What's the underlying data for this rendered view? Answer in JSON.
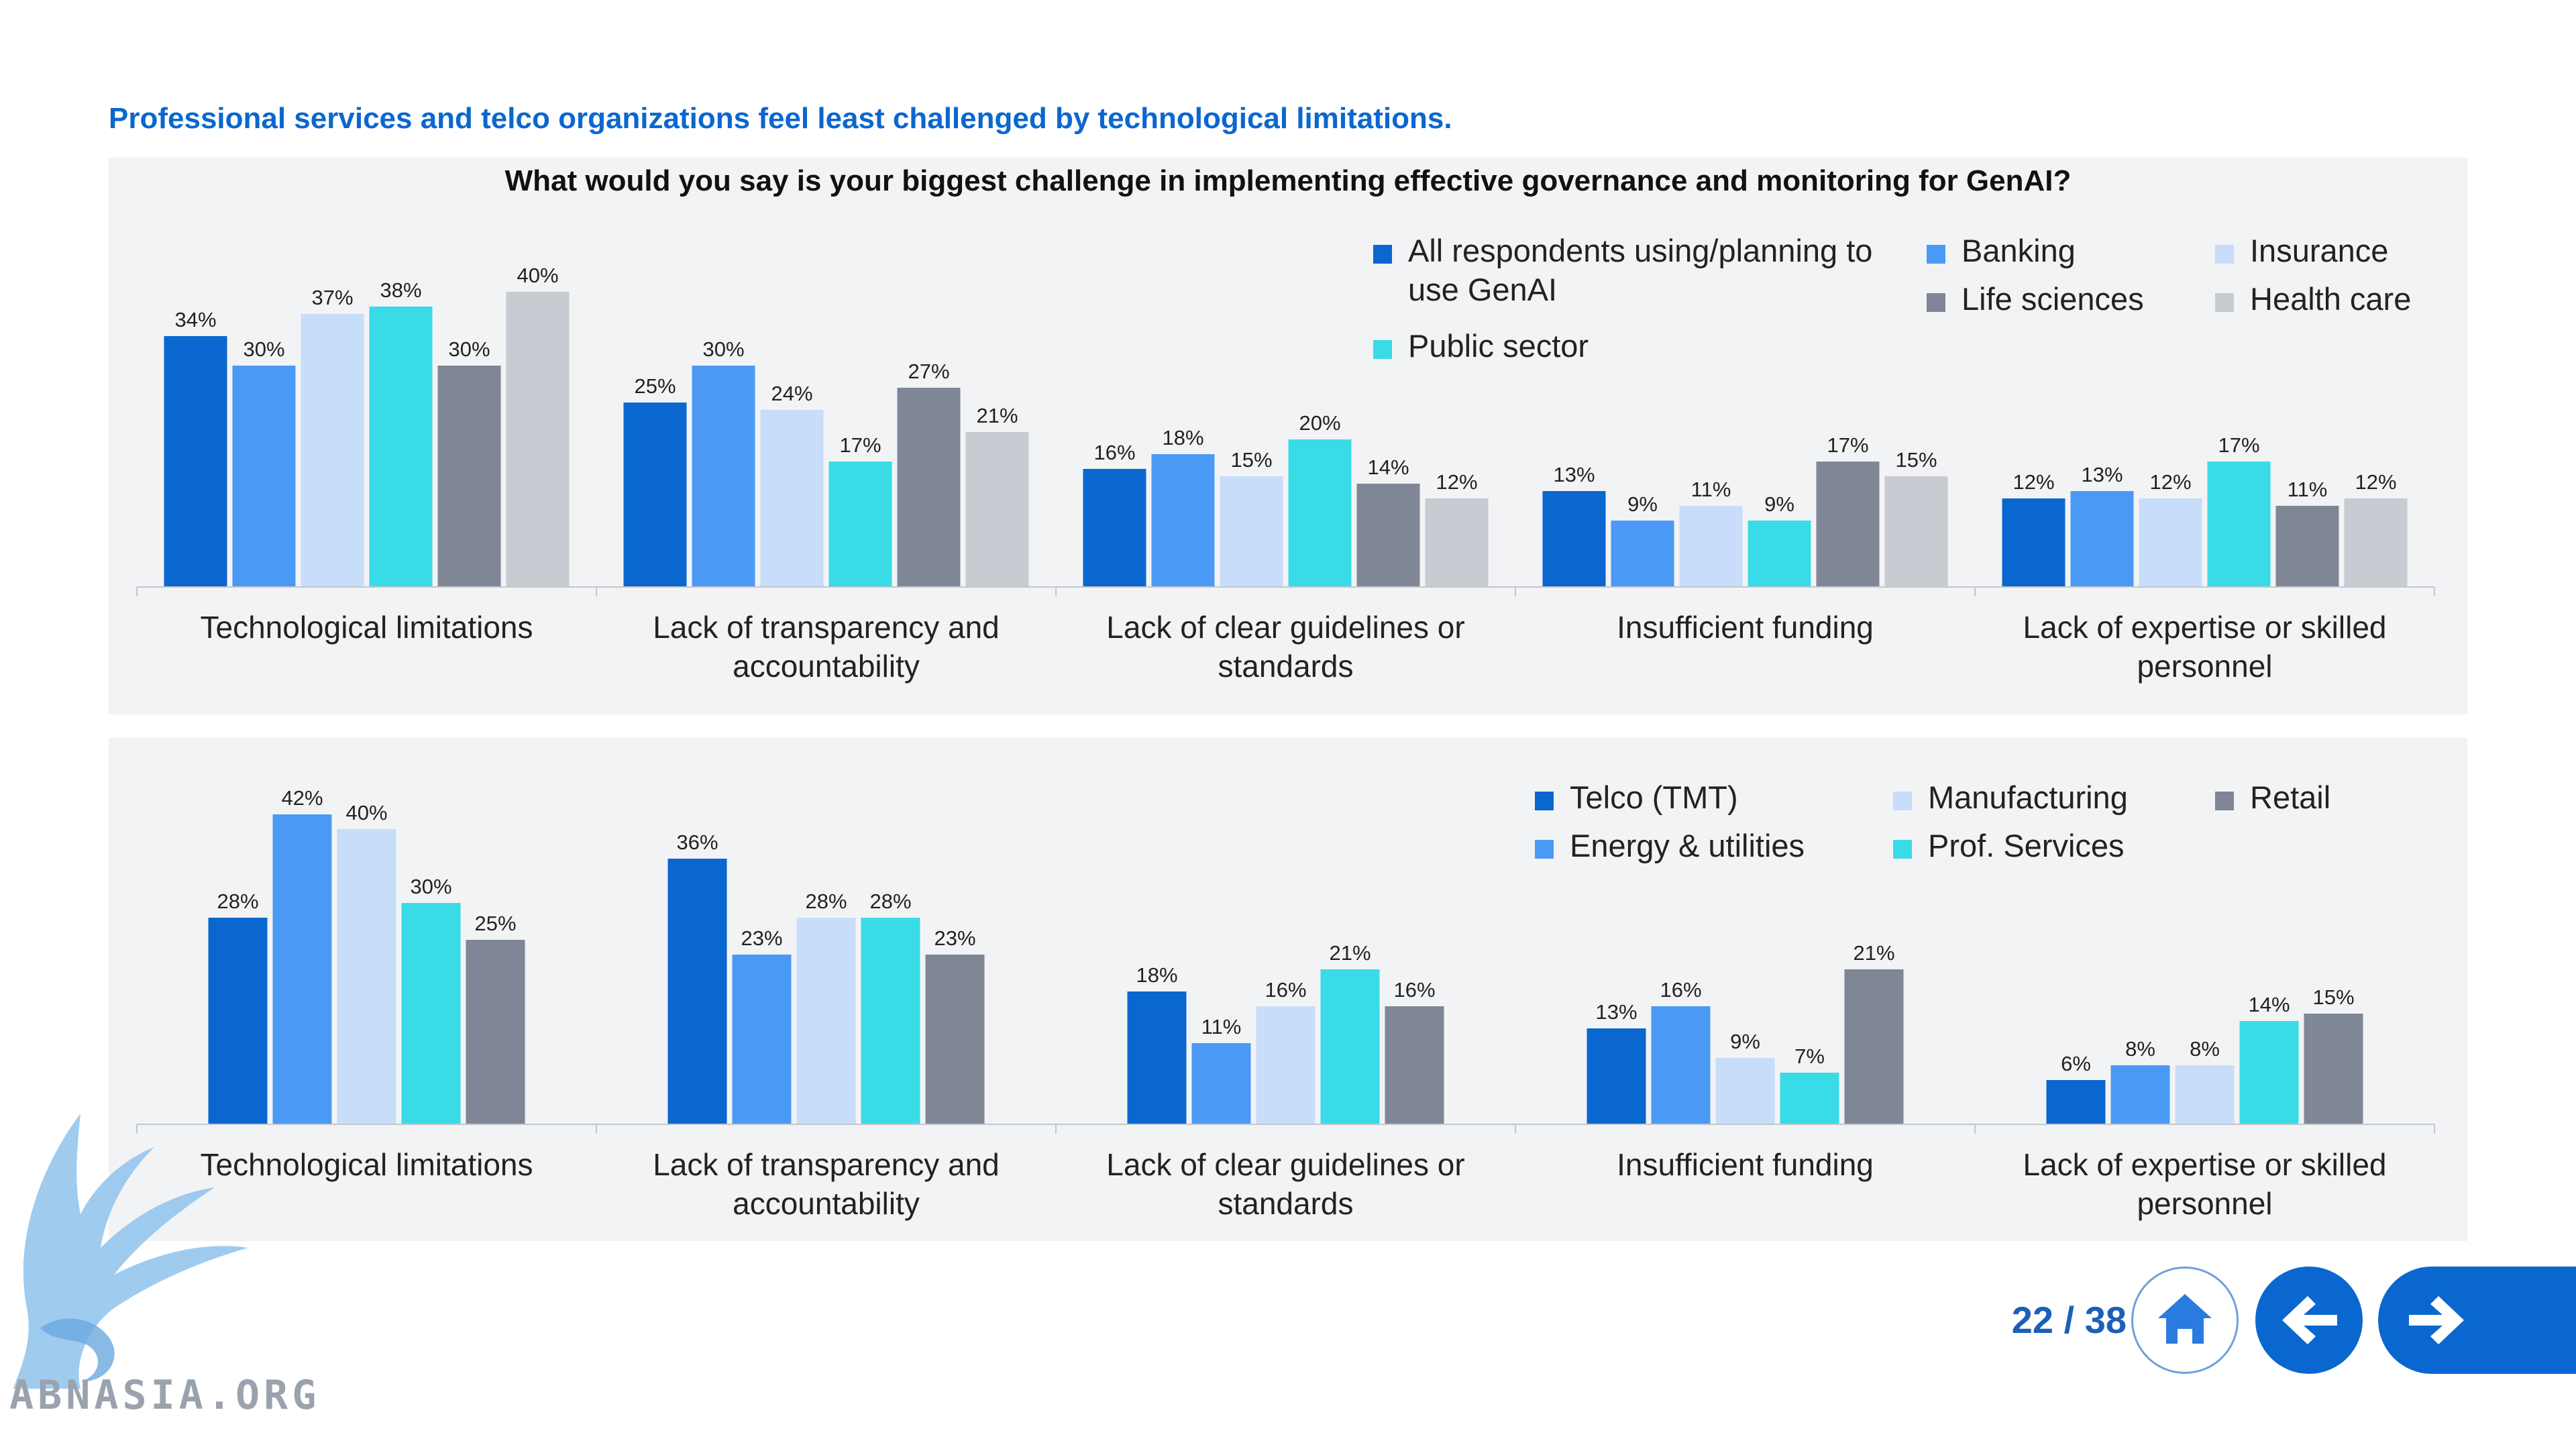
{
  "headline": "Professional services and telco organizations feel least challenged by technological limitations.",
  "question": "What would you say is your biggest challenge in implementing effective governance and monitoring for GenAI?",
  "page_counter": "22 / 38",
  "watermark_text": "ABNASIA.ORG",
  "colors": {
    "dark_blue": "#0a67d0",
    "mid_blue": "#4a9af5",
    "light_blue": "#c7ddfa",
    "cyan": "#39dbe6",
    "slate": "#7f8696",
    "light_gray": "#c8cbd2",
    "panel_bg": "#f2f3f5"
  },
  "icons": {
    "home": "home-icon",
    "back": "arrow-left-icon",
    "next": "arrow-right-icon"
  },
  "chart_data": [
    {
      "type": "bar",
      "categories": [
        "Technological limitations",
        "Lack of transparency and accountability",
        "Lack of clear guidelines or standards",
        "Insufficient funding",
        "Lack of expertise or skilled personnel"
      ],
      "series": [
        {
          "name": "All respondents using/planning to use GenAI",
          "color": "#0a67d0",
          "values": [
            34,
            25,
            16,
            13,
            12
          ]
        },
        {
          "name": "Banking",
          "color": "#4a9af5",
          "values": [
            30,
            30,
            18,
            9,
            13
          ]
        },
        {
          "name": "Insurance",
          "color": "#c7ddfa",
          "values": [
            37,
            24,
            15,
            11,
            12
          ]
        },
        {
          "name": "Public sector",
          "color": "#39dbe6",
          "values": [
            38,
            17,
            20,
            9,
            17
          ]
        },
        {
          "name": "Life sciences",
          "color": "#7f8696",
          "values": [
            30,
            27,
            14,
            17,
            11
          ]
        },
        {
          "name": "Health care",
          "color": "#c8cbd2",
          "values": [
            40,
            21,
            12,
            15,
            12
          ]
        }
      ],
      "unit": "%",
      "ylim": [
        0,
        45
      ],
      "legend_position": "top-right",
      "grid": false
    },
    {
      "type": "bar",
      "categories": [
        "Technological limitations",
        "Lack of transparency and accountability",
        "Lack of clear guidelines or standards",
        "Insufficient funding",
        "Lack of expertise or skilled personnel"
      ],
      "series": [
        {
          "name": "Telco (TMT)",
          "color": "#0a67d0",
          "values": [
            28,
            36,
            18,
            13,
            6
          ]
        },
        {
          "name": "Energy & utilities",
          "color": "#4a9af5",
          "values": [
            42,
            23,
            11,
            16,
            8
          ]
        },
        {
          "name": "Manufacturing",
          "color": "#c7ddfa",
          "values": [
            40,
            28,
            16,
            9,
            8
          ]
        },
        {
          "name": "Prof. Services",
          "color": "#39dbe6",
          "values": [
            30,
            28,
            21,
            7,
            14
          ]
        },
        {
          "name": "Retail",
          "color": "#7f8696",
          "values": [
            25,
            23,
            16,
            21,
            15
          ]
        }
      ],
      "unit": "%",
      "ylim": [
        0,
        45
      ],
      "legend_position": "top-right",
      "grid": false
    }
  ]
}
